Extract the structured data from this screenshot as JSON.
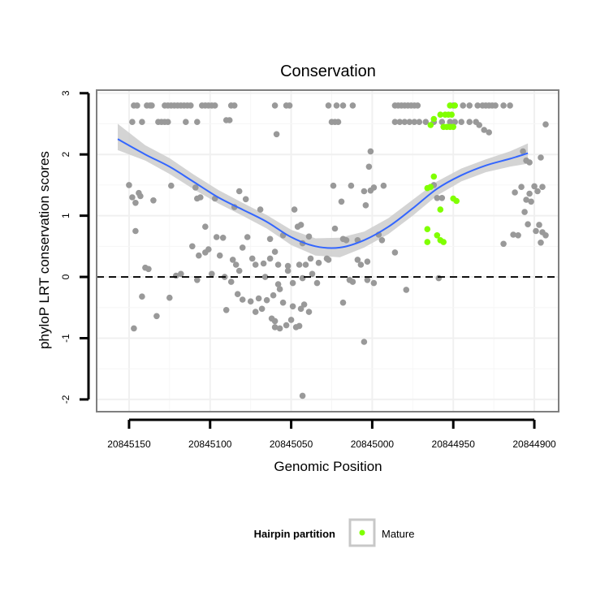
{
  "chart_data": {
    "type": "scatter",
    "title": "Conservation",
    "xlabel": "Genomic Position",
    "ylabel": "phyloP LRT conservation scores",
    "x_reversed": true,
    "xlim": [
      20845170,
      20844885
    ],
    "ylim": [
      -2.2,
      3.05
    ],
    "x_ticks": [
      20845150,
      20845100,
      20845050,
      20845000,
      20844950,
      20844900
    ],
    "x_tick_labels": [
      "20845150",
      "20845100",
      "20845050",
      "20845000",
      "20844950",
      "20844900"
    ],
    "y_ticks": [
      -2,
      -1,
      0,
      1,
      2,
      3
    ],
    "y_tick_labels": [
      "-2",
      "-1",
      "0",
      "1",
      "2",
      "3"
    ],
    "reference_line": {
      "y": 0,
      "style": "dashed",
      "color": "#000000"
    },
    "grid": true,
    "colors": {
      "other": "#999999",
      "mature": "#80ff00",
      "smooth": "#3366ff",
      "ribbon": "#cccccc",
      "panel_border": "#7f7f7f"
    },
    "legend": {
      "title": "Hairpin partition",
      "position": "bottom",
      "entries": [
        {
          "label": "Mature",
          "color": "#80ff00"
        }
      ]
    },
    "series": [
      {
        "name": "",
        "color": "#999999",
        "points": [
          [
            20845147,
            2.8
          ],
          [
            20845145,
            2.8
          ],
          [
            20845139,
            2.8
          ],
          [
            20845137,
            2.8
          ],
          [
            20845136,
            2.8
          ],
          [
            20845128,
            2.8
          ],
          [
            20845126,
            2.8
          ],
          [
            20845124,
            2.8
          ],
          [
            20845122,
            2.8
          ],
          [
            20845120,
            2.8
          ],
          [
            20845118,
            2.8
          ],
          [
            20845116,
            2.8
          ],
          [
            20845114,
            2.8
          ],
          [
            20845112,
            2.8
          ],
          [
            20845105,
            2.8
          ],
          [
            20845103,
            2.8
          ],
          [
            20845101,
            2.8
          ],
          [
            20845099,
            2.8
          ],
          [
            20845097,
            2.8
          ],
          [
            20845087,
            2.8
          ],
          [
            20845085,
            2.8
          ],
          [
            20845060,
            2.8
          ],
          [
            20845053,
            2.8
          ],
          [
            20845051,
            2.8
          ],
          [
            20845027,
            2.8
          ],
          [
            20845022,
            2.8
          ],
          [
            20845018,
            2.8
          ],
          [
            20845012,
            2.8
          ],
          [
            20844986,
            2.8
          ],
          [
            20844984,
            2.8
          ],
          [
            20844982,
            2.8
          ],
          [
            20844980,
            2.8
          ],
          [
            20844978,
            2.8
          ],
          [
            20844976,
            2.8
          ],
          [
            20844974,
            2.8
          ],
          [
            20844972,
            2.8
          ],
          [
            20844950,
            2.8
          ],
          [
            20844944,
            2.8
          ],
          [
            20844940,
            2.8
          ],
          [
            20844935,
            2.8
          ],
          [
            20844932,
            2.8
          ],
          [
            20844930,
            2.8
          ],
          [
            20844928,
            2.8
          ],
          [
            20844926,
            2.8
          ],
          [
            20844924,
            2.8
          ],
          [
            20844919,
            2.8
          ],
          [
            20844915,
            2.8
          ],
          [
            20845148,
            2.53
          ],
          [
            20845142,
            2.53
          ],
          [
            20845132,
            2.53
          ],
          [
            20845130,
            2.53
          ],
          [
            20845128,
            2.53
          ],
          [
            20845126,
            2.53
          ],
          [
            20845115,
            2.53
          ],
          [
            20845108,
            2.53
          ],
          [
            20845090,
            2.56
          ],
          [
            20845088,
            2.56
          ],
          [
            20845025,
            2.53
          ],
          [
            20845023,
            2.53
          ],
          [
            20845021,
            2.53
          ],
          [
            20844986,
            2.53
          ],
          [
            20844983,
            2.53
          ],
          [
            20844980,
            2.53
          ],
          [
            20844977,
            2.53
          ],
          [
            20844974,
            2.53
          ],
          [
            20844971,
            2.53
          ],
          [
            20844967,
            2.53
          ],
          [
            20844962,
            2.53
          ],
          [
            20844957,
            2.53
          ],
          [
            20844952,
            2.53
          ],
          [
            20844949,
            2.53
          ],
          [
            20844945,
            2.53
          ],
          [
            20844940,
            2.53
          ],
          [
            20844936,
            2.53
          ],
          [
            20844934,
            2.48
          ],
          [
            20844931,
            2.4
          ],
          [
            20844928,
            2.36
          ],
          [
            20844893,
            2.49
          ],
          [
            20844907,
            2.05
          ],
          [
            20844905,
            1.9
          ],
          [
            20844903,
            1.87
          ],
          [
            20844896,
            1.95
          ],
          [
            20845059,
            2.33
          ],
          [
            20845001,
            2.05
          ],
          [
            20845002,
            1.8
          ],
          [
            20845150,
            1.5
          ],
          [
            20845148,
            1.3
          ],
          [
            20845144,
            1.37
          ],
          [
            20845146,
            1.21
          ],
          [
            20845143,
            1.32
          ],
          [
            20845135,
            1.25
          ],
          [
            20845124,
            1.49
          ],
          [
            20845109,
            1.46
          ],
          [
            20845106,
            1.3
          ],
          [
            20845108,
            1.28
          ],
          [
            20845097,
            1.28
          ],
          [
            20845082,
            1.4
          ],
          [
            20845078,
            1.27
          ],
          [
            20845085,
            1.14
          ],
          [
            20845069,
            1.1
          ],
          [
            20845048,
            1.1
          ],
          [
            20845044,
            0.85
          ],
          [
            20845024,
            1.49
          ],
          [
            20845019,
            1.23
          ],
          [
            20845013,
            1.49
          ],
          [
            20845005,
            1.4
          ],
          [
            20845004,
            1.17
          ],
          [
            20845001,
            1.41
          ],
          [
            20844999,
            1.46
          ],
          [
            20844993,
            1.49
          ],
          [
            20844962,
            1.5
          ],
          [
            20844960,
            1.29
          ],
          [
            20844957,
            1.29
          ],
          [
            20844912,
            1.38
          ],
          [
            20844908,
            1.47
          ],
          [
            20844905,
            1.26
          ],
          [
            20844902,
            1.23
          ],
          [
            20844900,
            1.48
          ],
          [
            20844898,
            1.4
          ],
          [
            20844895,
            1.47
          ],
          [
            20844903,
            1.36
          ],
          [
            20844906,
            1.06
          ],
          [
            20844904,
            0.86
          ],
          [
            20844899,
            0.75
          ],
          [
            20844897,
            0.85
          ],
          [
            20844895,
            0.73
          ],
          [
            20844893,
            0.68
          ],
          [
            20844896,
            0.56
          ],
          [
            20844910,
            0.68
          ],
          [
            20844913,
            0.69
          ],
          [
            20844919,
            0.54
          ],
          [
            20845146,
            0.75
          ],
          [
            20845103,
            0.82
          ],
          [
            20845096,
            0.65
          ],
          [
            20845092,
            0.64
          ],
          [
            20845080,
            0.48
          ],
          [
            20845077,
            0.65
          ],
          [
            20845063,
            0.62
          ],
          [
            20845060,
            0.41
          ],
          [
            20845055,
            0.68
          ],
          [
            20845046,
            0.82
          ],
          [
            20845043,
            0.55
          ],
          [
            20845039,
            0.66
          ],
          [
            20845023,
            0.79
          ],
          [
            20845018,
            0.62
          ],
          [
            20845016,
            0.6
          ],
          [
            20845009,
            0.6
          ],
          [
            20844996,
            0.69
          ],
          [
            20844994,
            0.6
          ],
          [
            20844986,
            0.4
          ],
          [
            20845111,
            0.5
          ],
          [
            20845107,
            0.35
          ],
          [
            20845103,
            0.4
          ],
          [
            20845101,
            0.45
          ],
          [
            20845094,
            0.35
          ],
          [
            20845086,
            0.28
          ],
          [
            20845084,
            0.2
          ],
          [
            20845082,
            0.1
          ],
          [
            20845074,
            0.3
          ],
          [
            20845072,
            0.2
          ],
          [
            20845067,
            0.22
          ],
          [
            20845063,
            0.3
          ],
          [
            20845058,
            0.2
          ],
          [
            20845052,
            0.18
          ],
          [
            20845045,
            0.2
          ],
          [
            20845041,
            0.2
          ],
          [
            20845038,
            0.3
          ],
          [
            20845033,
            0.23
          ],
          [
            20845028,
            0.3
          ],
          [
            20845027,
            0.28
          ],
          [
            20845009,
            0.28
          ],
          [
            20845007,
            0.2
          ],
          [
            20845003,
            0.25
          ],
          [
            20845140,
            0.15
          ],
          [
            20845138,
            0.13
          ],
          [
            20845121,
            0.02
          ],
          [
            20845118,
            0.05
          ],
          [
            20845108,
            -0.05
          ],
          [
            20845099,
            0.05
          ],
          [
            20845091,
            0.0
          ],
          [
            20845087,
            -0.08
          ],
          [
            20845066,
            0.0
          ],
          [
            20845058,
            -0.12
          ],
          [
            20845052,
            0.1
          ],
          [
            20845049,
            -0.1
          ],
          [
            20845043,
            -0.02
          ],
          [
            20845037,
            0.05
          ],
          [
            20845034,
            -0.1
          ],
          [
            20845014,
            -0.05
          ],
          [
            20845012,
            -0.08
          ],
          [
            20845003,
            -0.05
          ],
          [
            20844999,
            -0.1
          ],
          [
            20844979,
            -0.21
          ],
          [
            20844959,
            -0.02
          ],
          [
            20845142,
            -0.32
          ],
          [
            20845125,
            -0.34
          ],
          [
            20845090,
            -0.54
          ],
          [
            20845083,
            -0.28
          ],
          [
            20845080,
            -0.37
          ],
          [
            20845075,
            -0.4
          ],
          [
            20845070,
            -0.35
          ],
          [
            20845065,
            -0.38
          ],
          [
            20845061,
            -0.3
          ],
          [
            20845057,
            -0.2
          ],
          [
            20845055,
            -0.42
          ],
          [
            20845049,
            -0.48
          ],
          [
            20845044,
            -0.52
          ],
          [
            20845042,
            -0.45
          ],
          [
            20845018,
            -0.42
          ],
          [
            20845133,
            -0.64
          ],
          [
            20845072,
            -0.57
          ],
          [
            20845068,
            -0.52
          ],
          [
            20845062,
            -0.68
          ],
          [
            20845060,
            -0.72
          ],
          [
            20845057,
            -0.84
          ],
          [
            20845053,
            -0.79
          ],
          [
            20845050,
            -0.7
          ],
          [
            20845047,
            -0.82
          ],
          [
            20845045,
            -0.8
          ],
          [
            20845039,
            -0.57
          ],
          [
            20845060,
            -0.82
          ],
          [
            20845147,
            -0.84
          ],
          [
            20845005,
            -1.06
          ],
          [
            20845043,
            -1.94
          ]
        ]
      },
      {
        "name": "Mature",
        "color": "#80ff00",
        "points": [
          [
            20844952,
            2.8
          ],
          [
            20844949,
            2.8
          ],
          [
            20844958,
            2.65
          ],
          [
            20844955,
            2.65
          ],
          [
            20844953,
            2.65
          ],
          [
            20844951,
            2.65
          ],
          [
            20844962,
            2.58
          ],
          [
            20844950,
            2.45
          ],
          [
            20844952,
            2.45
          ],
          [
            20844954,
            2.45
          ],
          [
            20844956,
            2.45
          ],
          [
            20844964,
            2.48
          ],
          [
            20844962,
            1.64
          ],
          [
            20844964,
            1.47
          ],
          [
            20844966,
            1.45
          ],
          [
            20844950,
            1.28
          ],
          [
            20844948,
            1.24
          ],
          [
            20844958,
            1.1
          ],
          [
            20844966,
            0.78
          ],
          [
            20844960,
            0.68
          ],
          [
            20844958,
            0.6
          ],
          [
            20844956,
            0.57
          ],
          [
            20844966,
            0.57
          ]
        ]
      }
    ],
    "smooth": {
      "x": [
        20845157,
        20845140,
        20845125,
        20845110,
        20845095,
        20845080,
        20845065,
        20845050,
        20845035,
        20845020,
        20845005,
        20844990,
        20844975,
        20844960,
        20844945,
        20844930,
        20844915,
        20844904
      ],
      "y": [
        2.25,
        2.0,
        1.8,
        1.55,
        1.3,
        1.1,
        0.9,
        0.65,
        0.5,
        0.48,
        0.6,
        0.82,
        1.12,
        1.44,
        1.66,
        1.82,
        1.93,
        2.02
      ],
      "lower": [
        2.07,
        1.9,
        1.68,
        1.43,
        1.2,
        1.0,
        0.79,
        0.52,
        0.35,
        0.32,
        0.48,
        0.7,
        1.0,
        1.33,
        1.56,
        1.71,
        1.8,
        1.85
      ],
      "upper": [
        2.5,
        2.15,
        1.94,
        1.67,
        1.42,
        1.21,
        1.01,
        0.77,
        0.63,
        0.64,
        0.74,
        0.96,
        1.26,
        1.56,
        1.77,
        1.92,
        2.05,
        2.18
      ]
    }
  }
}
